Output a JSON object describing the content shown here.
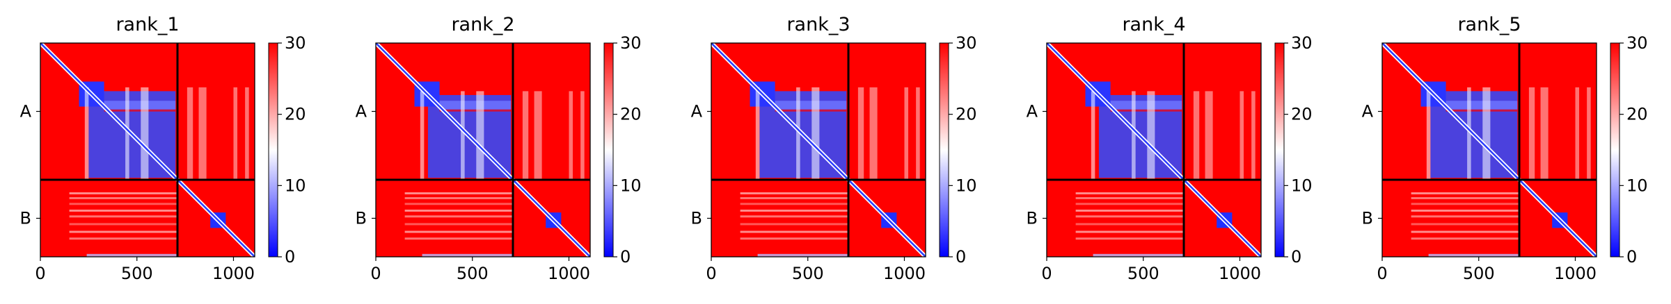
{
  "colors": {
    "low": "#0000ff",
    "mid": "#ffffff",
    "high": "#ff0000",
    "divider": "#000000"
  },
  "chart_data": [
    {
      "type": "heatmap",
      "title": "rank_1",
      "x_ticks": [
        0,
        500,
        1000
      ],
      "x_range": [
        0,
        1110
      ],
      "chains": [
        {
          "name": "A",
          "start": 0,
          "end": 710
        },
        {
          "name": "B",
          "start": 710,
          "end": 1110
        }
      ],
      "colorbar": {
        "ticks": [
          0,
          10,
          20,
          30
        ],
        "range": [
          0,
          30
        ],
        "colormap": "bwr"
      }
    },
    {
      "type": "heatmap",
      "title": "rank_2",
      "x_ticks": [
        0,
        500,
        1000
      ],
      "x_range": [
        0,
        1110
      ],
      "chains": [
        {
          "name": "A",
          "start": 0,
          "end": 710
        },
        {
          "name": "B",
          "start": 710,
          "end": 1110
        }
      ],
      "colorbar": {
        "ticks": [
          0,
          10,
          20,
          30
        ],
        "range": [
          0,
          30
        ],
        "colormap": "bwr"
      }
    },
    {
      "type": "heatmap",
      "title": "rank_3",
      "x_ticks": [
        0,
        500,
        1000
      ],
      "x_range": [
        0,
        1110
      ],
      "chains": [
        {
          "name": "A",
          "start": 0,
          "end": 710
        },
        {
          "name": "B",
          "start": 710,
          "end": 1110
        }
      ],
      "colorbar": {
        "ticks": [
          0,
          10,
          20,
          30
        ],
        "range": [
          0,
          30
        ],
        "colormap": "bwr"
      }
    },
    {
      "type": "heatmap",
      "title": "rank_4",
      "x_ticks": [
        0,
        500,
        1000
      ],
      "x_range": [
        0,
        1110
      ],
      "chains": [
        {
          "name": "A",
          "start": 0,
          "end": 710
        },
        {
          "name": "B",
          "start": 710,
          "end": 1110
        }
      ],
      "colorbar": {
        "ticks": [
          0,
          10,
          20,
          30
        ],
        "range": [
          0,
          30
        ],
        "colormap": "bwr"
      }
    },
    {
      "type": "heatmap",
      "title": "rank_5",
      "x_ticks": [
        0,
        500,
        1000
      ],
      "x_range": [
        0,
        1110
      ],
      "chains": [
        {
          "name": "A",
          "start": 0,
          "end": 710
        },
        {
          "name": "B",
          "start": 710,
          "end": 1110
        }
      ],
      "colorbar": {
        "ticks": [
          0,
          10,
          20,
          30
        ],
        "range": [
          0,
          30
        ],
        "colormap": "bwr"
      }
    }
  ]
}
